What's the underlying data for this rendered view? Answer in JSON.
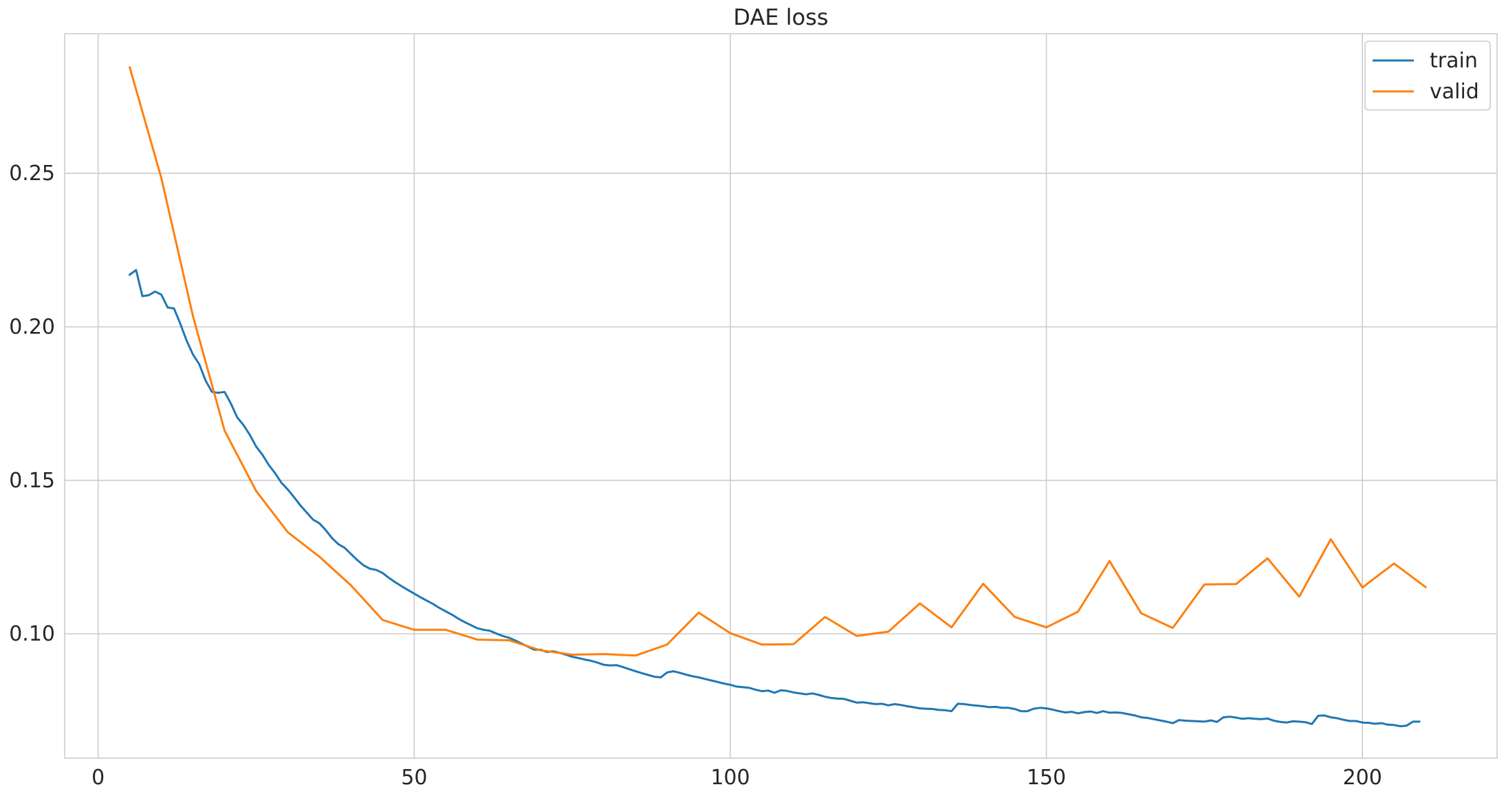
{
  "chart_data": {
    "type": "line",
    "title": "DAE loss",
    "xlabel": "",
    "ylabel": "",
    "xlim": [
      -5.3,
      221.3
    ],
    "ylim": [
      0.0595,
      0.2955
    ],
    "xticks": [
      0,
      50,
      100,
      150,
      200
    ],
    "yticks": [
      0.1,
      0.15,
      0.2,
      0.25
    ],
    "xtick_labels": [
      "0",
      "50",
      "100",
      "150",
      "200"
    ],
    "ytick_labels": [
      "0.10",
      "0.15",
      "0.20",
      "0.25"
    ],
    "grid": true,
    "legend_position": "top-right",
    "series": [
      {
        "name": "train",
        "color": "#1f77b4",
        "points": [
          [
            5,
            0.217
          ],
          [
            6,
            0.2185
          ],
          [
            7,
            0.21
          ],
          [
            8,
            0.2103
          ],
          [
            9,
            0.2115
          ],
          [
            10,
            0.2105
          ],
          [
            11,
            0.2063
          ],
          [
            12,
            0.206
          ],
          [
            13,
            0.201
          ],
          [
            14,
            0.1955
          ],
          [
            15,
            0.191
          ],
          [
            16,
            0.1878
          ],
          [
            17,
            0.1825
          ],
          [
            18,
            0.1788
          ],
          [
            19,
            0.1785
          ],
          [
            20,
            0.1788
          ],
          [
            21,
            0.175
          ],
          [
            22,
            0.1705
          ],
          [
            23,
            0.168
          ],
          [
            24,
            0.1648
          ],
          [
            25,
            0.161
          ],
          [
            26,
            0.1583
          ],
          [
            27,
            0.155
          ],
          [
            28,
            0.1523
          ],
          [
            29,
            0.1492
          ],
          [
            30,
            0.147
          ],
          [
            31,
            0.1445
          ],
          [
            32,
            0.1418
          ],
          [
            33,
            0.1395
          ],
          [
            34,
            0.1372
          ],
          [
            35,
            0.136
          ],
          [
            36,
            0.1338
          ],
          [
            37,
            0.1312
          ],
          [
            38,
            0.1292
          ],
          [
            39,
            0.128
          ],
          [
            40,
            0.126
          ],
          [
            41,
            0.124
          ],
          [
            42,
            0.1223
          ],
          [
            43,
            0.1212
          ],
          [
            44,
            0.1208
          ],
          [
            45,
            0.1198
          ],
          [
            46,
            0.1182
          ],
          [
            47,
            0.1168
          ],
          [
            48,
            0.1155
          ],
          [
            49,
            0.1143
          ],
          [
            50,
            0.1131
          ],
          [
            51,
            0.1119
          ],
          [
            52,
            0.1108
          ],
          [
            53,
            0.1097
          ],
          [
            54,
            0.1084
          ],
          [
            55,
            0.1073
          ],
          [
            56,
            0.1062
          ],
          [
            57,
            0.1049
          ],
          [
            58,
            0.1038
          ],
          [
            59,
            0.1028
          ],
          [
            60,
            0.1018
          ],
          [
            61,
            0.1013
          ],
          [
            62,
            0.101
          ],
          [
            63,
            0.1001
          ],
          [
            64,
            0.0993
          ],
          [
            65,
            0.0987
          ],
          [
            66,
            0.0978
          ],
          [
            67,
            0.0968
          ],
          [
            68,
            0.0958
          ],
          [
            69,
            0.0948
          ],
          [
            70,
            0.0948
          ],
          [
            71,
            0.0941
          ],
          [
            72,
            0.0943
          ],
          [
            73,
            0.0938
          ],
          [
            74,
            0.0932
          ],
          [
            75,
            0.0925
          ],
          [
            76,
            0.0921
          ],
          [
            77,
            0.0916
          ],
          [
            78,
            0.0912
          ],
          [
            79,
            0.0906
          ],
          [
            80,
            0.0899
          ],
          [
            81,
            0.0897
          ],
          [
            82,
            0.0898
          ],
          [
            83,
            0.0892
          ],
          [
            84,
            0.0885
          ],
          [
            85,
            0.0878
          ],
          [
            86,
            0.0872
          ],
          [
            87,
            0.0866
          ],
          [
            88,
            0.086
          ],
          [
            89,
            0.0858
          ],
          [
            90,
            0.0874
          ],
          [
            91,
            0.0878
          ],
          [
            92,
            0.0873
          ],
          [
            93,
            0.0867
          ],
          [
            94,
            0.0862
          ],
          [
            95,
            0.0858
          ],
          [
            96,
            0.0853
          ],
          [
            97,
            0.0848
          ],
          [
            98,
            0.0843
          ],
          [
            99,
            0.0838
          ],
          [
            100,
            0.0834
          ],
          [
            101,
            0.0828
          ],
          [
            102,
            0.0826
          ],
          [
            103,
            0.0824
          ],
          [
            104,
            0.0818
          ],
          [
            105,
            0.0813
          ],
          [
            106,
            0.0815
          ],
          [
            107,
            0.0808
          ],
          [
            108,
            0.0816
          ],
          [
            109,
            0.0814
          ],
          [
            110,
            0.0809
          ],
          [
            111,
            0.0806
          ],
          [
            112,
            0.0803
          ],
          [
            113,
            0.0806
          ],
          [
            114,
            0.0801
          ],
          [
            115,
            0.0795
          ],
          [
            116,
            0.0791
          ],
          [
            117,
            0.0789
          ],
          [
            118,
            0.0788
          ],
          [
            119,
            0.0782
          ],
          [
            120,
            0.0776
          ],
          [
            121,
            0.0777
          ],
          [
            122,
            0.0774
          ],
          [
            123,
            0.0771
          ],
          [
            124,
            0.0772
          ],
          [
            125,
            0.0767
          ],
          [
            126,
            0.0771
          ],
          [
            127,
            0.0768
          ],
          [
            128,
            0.0764
          ],
          [
            129,
            0.0761
          ],
          [
            130,
            0.0757
          ],
          [
            131,
            0.0756
          ],
          [
            132,
            0.0755
          ],
          [
            133,
            0.0752
          ],
          [
            134,
            0.0751
          ],
          [
            135,
            0.0748
          ],
          [
            136,
            0.0772
          ],
          [
            137,
            0.0771
          ],
          [
            138,
            0.0768
          ],
          [
            139,
            0.0766
          ],
          [
            140,
            0.0764
          ],
          [
            141,
            0.0761
          ],
          [
            142,
            0.0762
          ],
          [
            143,
            0.0759
          ],
          [
            144,
            0.0759
          ],
          [
            145,
            0.0755
          ],
          [
            146,
            0.0748
          ],
          [
            147,
            0.0748
          ],
          [
            148,
            0.0756
          ],
          [
            149,
            0.0759
          ],
          [
            150,
            0.0757
          ],
          [
            151,
            0.0753
          ],
          [
            152,
            0.0748
          ],
          [
            153,
            0.0744
          ],
          [
            154,
            0.0746
          ],
          [
            155,
            0.0741
          ],
          [
            156,
            0.0745
          ],
          [
            157,
            0.0747
          ],
          [
            158,
            0.0742
          ],
          [
            159,
            0.0748
          ],
          [
            160,
            0.0743
          ],
          [
            161,
            0.0744
          ],
          [
            162,
            0.0742
          ],
          [
            163,
            0.0738
          ],
          [
            164,
            0.0734
          ],
          [
            165,
            0.0728
          ],
          [
            166,
            0.0726
          ],
          [
            167,
            0.0722
          ],
          [
            168,
            0.0718
          ],
          [
            169,
            0.0714
          ],
          [
            170,
            0.0709
          ],
          [
            171,
            0.0719
          ],
          [
            172,
            0.0717
          ],
          [
            173,
            0.0716
          ],
          [
            174,
            0.0715
          ],
          [
            175,
            0.0714
          ],
          [
            176,
            0.0718
          ],
          [
            177,
            0.0713
          ],
          [
            178,
            0.0728
          ],
          [
            179,
            0.073
          ],
          [
            180,
            0.0727
          ],
          [
            181,
            0.0723
          ],
          [
            182,
            0.0725
          ],
          [
            183,
            0.0723
          ],
          [
            184,
            0.0722
          ],
          [
            185,
            0.0724
          ],
          [
            186,
            0.0717
          ],
          [
            187,
            0.0713
          ],
          [
            188,
            0.0711
          ],
          [
            189,
            0.0715
          ],
          [
            190,
            0.0714
          ],
          [
            191,
            0.0712
          ],
          [
            192,
            0.0706
          ],
          [
            193,
            0.0733
          ],
          [
            194,
            0.0734
          ],
          [
            195,
            0.0728
          ],
          [
            196,
            0.0725
          ],
          [
            197,
            0.072
          ],
          [
            198,
            0.0716
          ],
          [
            199,
            0.0716
          ],
          [
            200,
            0.0711
          ],
          [
            201,
            0.071
          ],
          [
            202,
            0.0707
          ],
          [
            203,
            0.0709
          ],
          [
            204,
            0.0704
          ],
          [
            205,
            0.0703
          ],
          [
            206,
            0.0699
          ],
          [
            207,
            0.0701
          ],
          [
            208,
            0.0714
          ],
          [
            209,
            0.0714
          ]
        ]
      },
      {
        "name": "valid",
        "color": "#ff7f0e",
        "points": [
          [
            5,
            0.2845
          ],
          [
            10,
            0.2485
          ],
          [
            15,
            0.2035
          ],
          [
            20,
            0.1662
          ],
          [
            25,
            0.1465
          ],
          [
            30,
            0.1331
          ],
          [
            35,
            0.1251
          ],
          [
            40,
            0.1158
          ],
          [
            45,
            0.1045
          ],
          [
            50,
            0.1013
          ],
          [
            55,
            0.1013
          ],
          [
            60,
            0.0981
          ],
          [
            65,
            0.0979
          ],
          [
            70,
            0.0946
          ],
          [
            75,
            0.0932
          ],
          [
            80,
            0.0934
          ],
          [
            85,
            0.0929
          ],
          [
            90,
            0.0965
          ],
          [
            95,
            0.1069
          ],
          [
            100,
            0.1002
          ],
          [
            105,
            0.0965
          ],
          [
            110,
            0.0966
          ],
          [
            115,
            0.1055
          ],
          [
            120,
            0.0993
          ],
          [
            125,
            0.1007
          ],
          [
            130,
            0.1099
          ],
          [
            135,
            0.1021
          ],
          [
            140,
            0.1163
          ],
          [
            145,
            0.1055
          ],
          [
            150,
            0.1021
          ],
          [
            155,
            0.1072
          ],
          [
            160,
            0.1237
          ],
          [
            165,
            0.1067
          ],
          [
            170,
            0.1019
          ],
          [
            175,
            0.1161
          ],
          [
            180,
            0.1162
          ],
          [
            185,
            0.1246
          ],
          [
            190,
            0.1121
          ],
          [
            195,
            0.1308
          ],
          [
            200,
            0.1151
          ],
          [
            205,
            0.1229
          ],
          [
            210,
            0.1152
          ]
        ]
      }
    ]
  }
}
